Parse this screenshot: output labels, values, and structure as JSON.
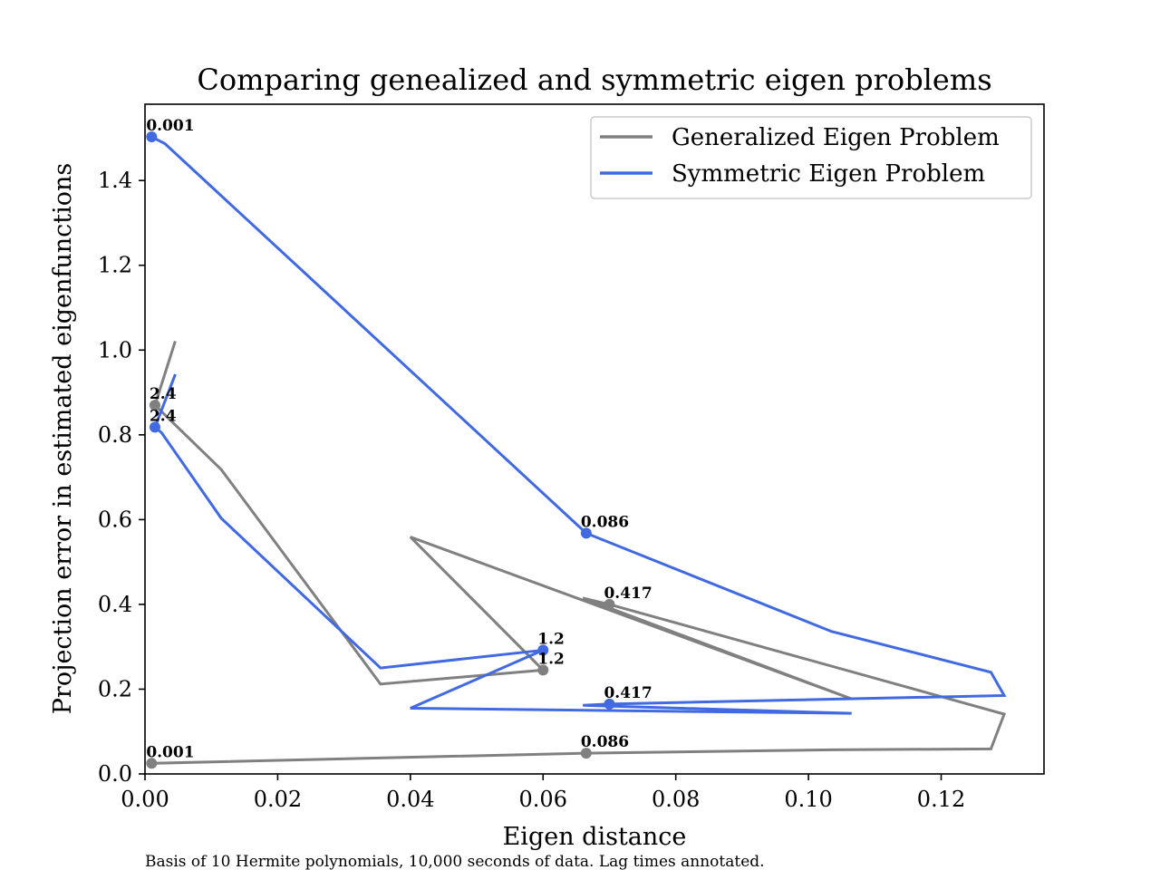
{
  "chart_data": {
    "type": "line",
    "title": "Comparing genealized and symmetric eigen problems",
    "xlabel": "Eigen distance",
    "ylabel": "Projection error in estimated eigenfunctions",
    "caption": "Basis of 10 Hermite polynomials, 10,000 seconds of data. Lag times annotated.",
    "xlim": [
      0.0,
      0.1355
    ],
    "ylim": [
      0.0,
      1.58
    ],
    "xticks": [
      0.0,
      0.02,
      0.04,
      0.06,
      0.08,
      0.1,
      0.12
    ],
    "xtick_labels": [
      "0.00",
      "0.02",
      "0.04",
      "0.06",
      "0.08",
      "0.10",
      "0.12"
    ],
    "yticks": [
      0.0,
      0.2,
      0.4,
      0.6,
      0.8,
      1.0,
      1.2,
      1.4
    ],
    "ytick_labels": [
      "0.0",
      "0.2",
      "0.4",
      "0.6",
      "0.8",
      "1.0",
      "1.2",
      "1.4"
    ],
    "grid": false,
    "legend_position": "top-right",
    "series": [
      {
        "name": "Generalized Eigen Problem",
        "color": "#808080",
        "points": [
          [
            0.001,
            0.025
          ],
          [
            0.0665,
            0.049
          ],
          [
            0.1035,
            0.057
          ],
          [
            0.1275,
            0.059
          ],
          [
            0.1295,
            0.141
          ],
          [
            0.07,
            0.4
          ],
          [
            0.066,
            0.415
          ],
          [
            0.1065,
            0.177
          ],
          [
            0.04,
            0.559
          ],
          [
            0.06,
            0.245
          ],
          [
            0.0355,
            0.212
          ],
          [
            0.0115,
            0.718
          ],
          [
            0.0015,
            0.87
          ],
          [
            0.0045,
            1.018
          ]
        ],
        "markers": [
          {
            "x": 0.001,
            "y": 0.025,
            "label": "0.001"
          },
          {
            "x": 0.0665,
            "y": 0.049,
            "label": "0.086"
          },
          {
            "x": 0.07,
            "y": 0.4,
            "label": "0.417"
          },
          {
            "x": 0.06,
            "y": 0.245,
            "label": "1.2"
          },
          {
            "x": 0.0015,
            "y": 0.87,
            "label": "2.4"
          }
        ]
      },
      {
        "name": "Symmetric Eigen Problem",
        "color": "#4169e1",
        "points": [
          [
            0.001,
            1.503
          ],
          [
            0.003,
            1.487
          ],
          [
            0.0665,
            0.568
          ],
          [
            0.1035,
            0.336
          ],
          [
            0.1275,
            0.24
          ],
          [
            0.1295,
            0.185
          ],
          [
            0.07,
            0.165
          ],
          [
            0.066,
            0.162
          ],
          [
            0.1065,
            0.143
          ],
          [
            0.04,
            0.155
          ],
          [
            0.06,
            0.292
          ],
          [
            0.0355,
            0.25
          ],
          [
            0.0115,
            0.603
          ],
          [
            0.0025,
            0.805
          ],
          [
            0.0015,
            0.818
          ],
          [
            0.0045,
            0.94
          ]
        ],
        "markers": [
          {
            "x": 0.001,
            "y": 1.503,
            "label": "0.001"
          },
          {
            "x": 0.0665,
            "y": 0.568,
            "label": "0.086"
          },
          {
            "x": 0.07,
            "y": 0.165,
            "label": "0.417"
          },
          {
            "x": 0.06,
            "y": 0.292,
            "label": "1.2"
          },
          {
            "x": 0.0015,
            "y": 0.818,
            "label": "2.4"
          }
        ]
      }
    ]
  }
}
